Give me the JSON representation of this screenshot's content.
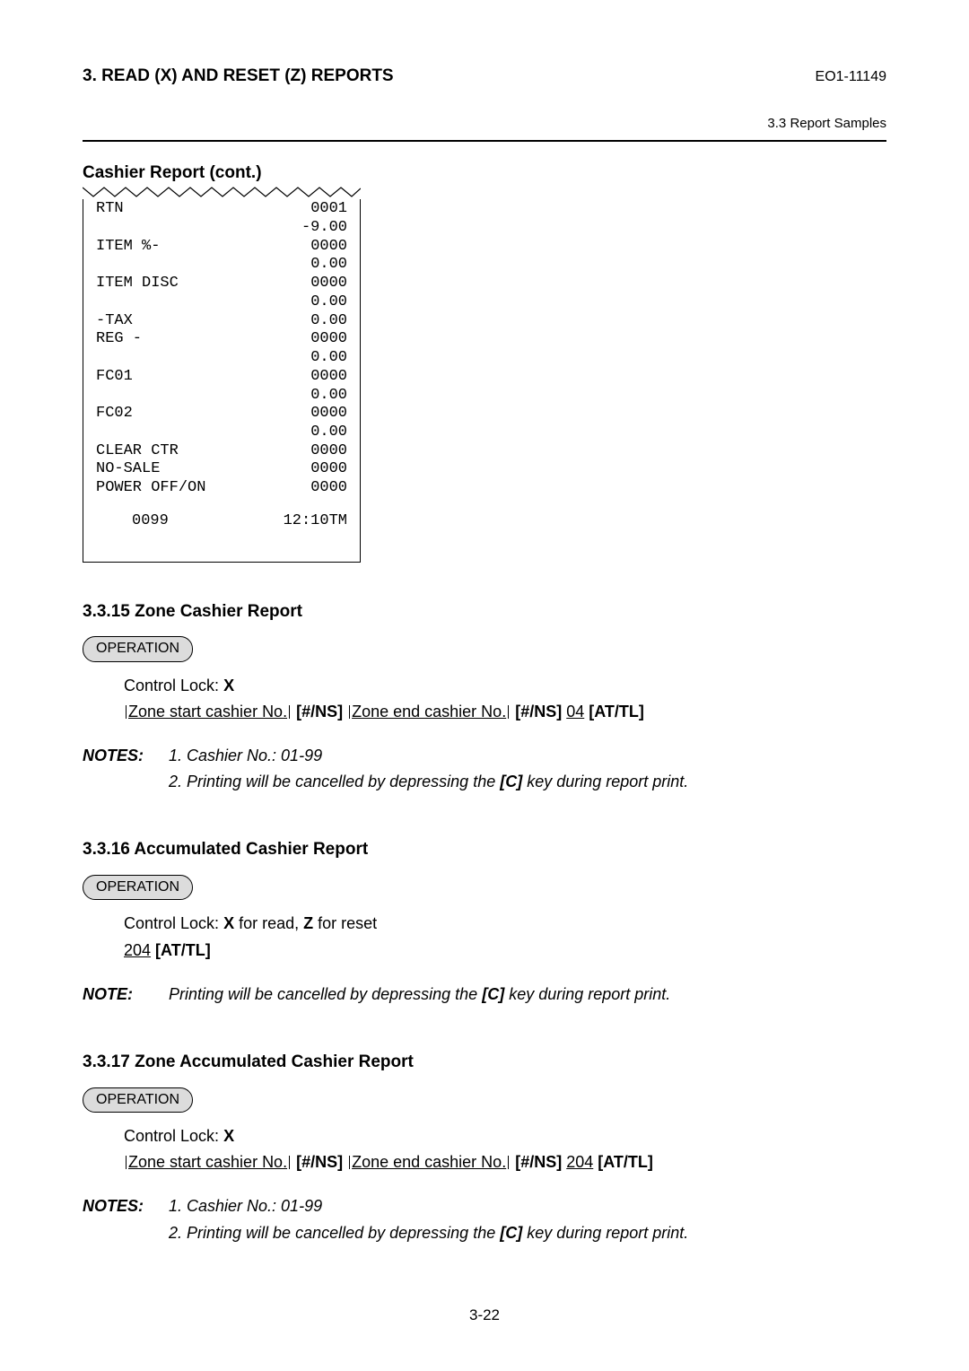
{
  "header": {
    "left": "3. READ (X) AND RESET (Z) REPORTS",
    "right": "EO1-11149",
    "sub": "3.3 Report Samples"
  },
  "cashier_cont_title": "Cashier Report (cont.)",
  "receipt": {
    "rows": [
      {
        "l": "RTN",
        "r": "0001"
      },
      {
        "l": "",
        "r": "-9.00"
      },
      {
        "l": "ITEM %-",
        "r": "0000"
      },
      {
        "l": "",
        "r": "0.00"
      },
      {
        "l": "ITEM DISC",
        "r": "0000"
      },
      {
        "l": "",
        "r": "0.00"
      },
      {
        "l": "-TAX",
        "r": "0.00"
      },
      {
        "l": "REG -",
        "r": "0000"
      },
      {
        "l": "",
        "r": "0.00"
      },
      {
        "l": "FC01",
        "r": "0000"
      },
      {
        "l": "",
        "r": "0.00"
      },
      {
        "l": "FC02",
        "r": "0000"
      },
      {
        "l": "",
        "r": "0.00"
      },
      {
        "l": "CLEAR CTR",
        "r": "0000"
      },
      {
        "l": "NO-SALE",
        "r": "0000"
      },
      {
        "l": "POWER OFF/ON",
        "r": "0000"
      }
    ],
    "footer": {
      "c1": "0099",
      "c2": "12:10TM"
    }
  },
  "s15": {
    "heading": "3.3.15    Zone Cashier Report",
    "pill": "OPERATION",
    "control": "Control Lock: ",
    "control_x": "X",
    "seq": {
      "a": "Zone start cashier No.",
      "b": " [#/NS] ",
      "c": "Zone end cashier No.",
      "d": " [#/NS] ",
      "e": "04",
      "f": " [AT/TL]"
    },
    "notes_lbl": "NOTES:",
    "note1": "1.  Cashier No.: 01-99",
    "note2a": "2.  Printing will be cancelled by depressing the ",
    "note2b": "[C]",
    "note2c": " key during report print."
  },
  "s16": {
    "heading": "3.3.16    Accumulated Cashier Report",
    "pill": "OPERATION",
    "control_a": "Control Lock: ",
    "control_b": "X",
    "control_c": " for read, ",
    "control_d": "Z",
    "control_e": " for reset",
    "seq_a": "204",
    "seq_b": " [AT/TL]",
    "note_lbl": "NOTE:",
    "note_a": "Printing will be cancelled by depressing the ",
    "note_b": "[C]",
    "note_c": " key during report print."
  },
  "s17": {
    "heading": "3.3.17    Zone Accumulated Cashier Report",
    "pill": "OPERATION",
    "control": "Control Lock: ",
    "control_x": "X",
    "seq": {
      "a": "Zone start cashier No.",
      "b": " [#/NS] ",
      "c": "Zone end cashier No.",
      "d": " [#/NS] ",
      "e": "204",
      "f": " [AT/TL]"
    },
    "notes_lbl": "NOTES:",
    "note1": "1.  Cashier No.: 01-99",
    "note2a": "2.  Printing will be cancelled by depressing the ",
    "note2b": "[C]",
    "note2c": " key during report print."
  },
  "footer": "3-22"
}
